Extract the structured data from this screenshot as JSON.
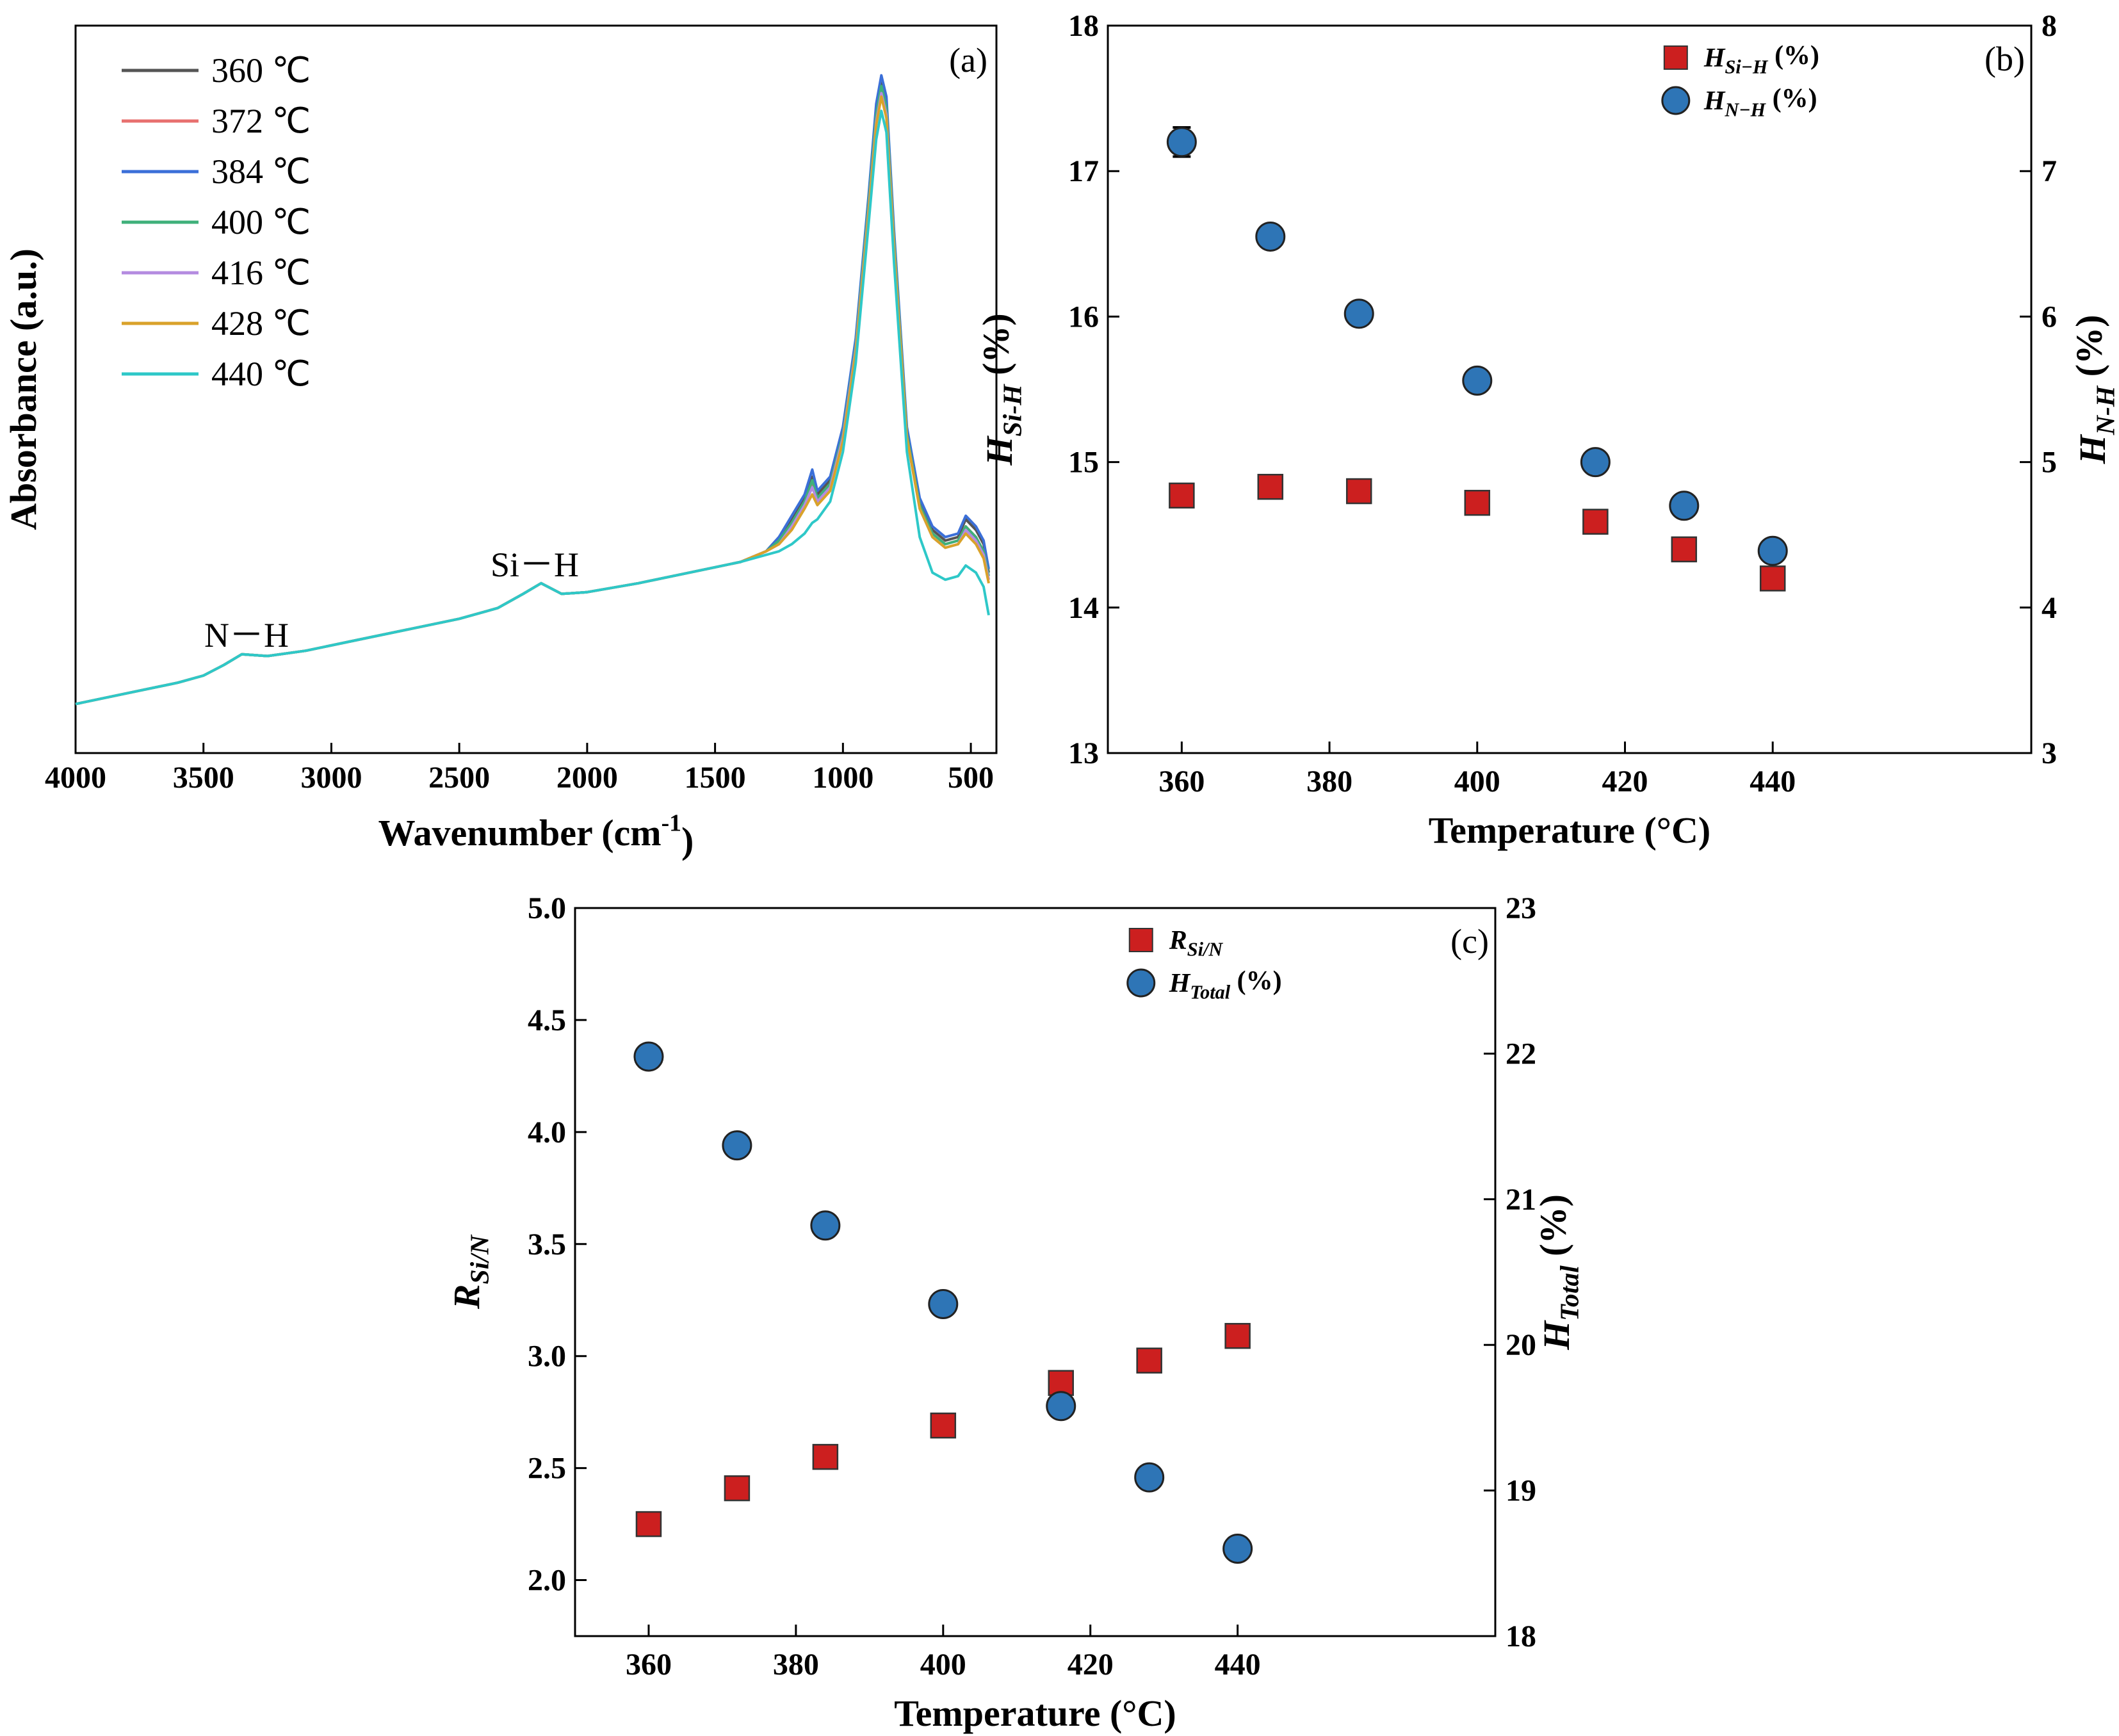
{
  "chart_data": [
    {
      "type": "line",
      "panel_label": "(a)",
      "xlabel": "Wavenumber (cm",
      "xlabel_sup": "-1",
      "xlabel_end": ")",
      "ylabel": "Absorbance (a.u.)",
      "xlim": [
        4000,
        400
      ],
      "x_ticks": [
        4000,
        3500,
        3000,
        2500,
        2000,
        1500,
        1000,
        500
      ],
      "y_ticks_shown": false,
      "annotations": [
        "N－H",
        "Si－H"
      ],
      "legend_position": "top-left",
      "x": [
        4000,
        3800,
        3600,
        3500,
        3420,
        3350,
        3250,
        3100,
        2900,
        2700,
        2500,
        2350,
        2250,
        2180,
        2100,
        2000,
        1800,
        1600,
        1400,
        1300,
        1250,
        1200,
        1150,
        1120,
        1100,
        1050,
        1000,
        950,
        900,
        870,
        850,
        830,
        800,
        750,
        700,
        650,
        600,
        550,
        520,
        480,
        450,
        430
      ],
      "series": [
        {
          "name": "360 ℃",
          "color": "#555555",
          "values": [
            0.03,
            0.06,
            0.09,
            0.11,
            0.14,
            0.17,
            0.165,
            0.18,
            0.21,
            0.24,
            0.27,
            0.3,
            0.34,
            0.37,
            0.34,
            0.345,
            0.37,
            0.4,
            0.43,
            0.46,
            0.5,
            0.55,
            0.61,
            0.67,
            0.62,
            0.66,
            0.8,
            1.05,
            1.45,
            1.7,
            1.78,
            1.72,
            1.35,
            0.8,
            0.6,
            0.52,
            0.49,
            0.5,
            0.55,
            0.52,
            0.48,
            0.4
          ]
        },
        {
          "name": "372 ℃",
          "color": "#e8706f",
          "values": [
            0.03,
            0.06,
            0.09,
            0.11,
            0.14,
            0.17,
            0.165,
            0.18,
            0.21,
            0.24,
            0.27,
            0.3,
            0.34,
            0.37,
            0.34,
            0.345,
            0.37,
            0.4,
            0.43,
            0.46,
            0.49,
            0.54,
            0.6,
            0.65,
            0.61,
            0.65,
            0.79,
            1.04,
            1.43,
            1.68,
            1.76,
            1.7,
            1.33,
            0.79,
            0.59,
            0.51,
            0.48,
            0.49,
            0.53,
            0.5,
            0.46,
            0.38
          ]
        },
        {
          "name": "384 ℃",
          "color": "#3b6fd8",
          "values": [
            0.03,
            0.06,
            0.09,
            0.11,
            0.14,
            0.17,
            0.165,
            0.18,
            0.21,
            0.24,
            0.27,
            0.3,
            0.34,
            0.37,
            0.34,
            0.345,
            0.37,
            0.4,
            0.43,
            0.46,
            0.5,
            0.56,
            0.62,
            0.69,
            0.63,
            0.67,
            0.81,
            1.06,
            1.46,
            1.72,
            1.8,
            1.74,
            1.36,
            0.81,
            0.61,
            0.53,
            0.5,
            0.51,
            0.56,
            0.53,
            0.49,
            0.41
          ]
        },
        {
          "name": "400 ℃",
          "color": "#3fb07a",
          "values": [
            0.03,
            0.06,
            0.09,
            0.11,
            0.14,
            0.17,
            0.165,
            0.18,
            0.21,
            0.24,
            0.27,
            0.3,
            0.34,
            0.37,
            0.34,
            0.345,
            0.37,
            0.4,
            0.43,
            0.46,
            0.49,
            0.54,
            0.6,
            0.66,
            0.61,
            0.65,
            0.79,
            1.04,
            1.44,
            1.69,
            1.77,
            1.71,
            1.34,
            0.79,
            0.59,
            0.51,
            0.48,
            0.49,
            0.53,
            0.5,
            0.46,
            0.39
          ]
        },
        {
          "name": "416 ℃",
          "color": "#b48be0",
          "values": [
            0.03,
            0.06,
            0.09,
            0.11,
            0.14,
            0.17,
            0.165,
            0.18,
            0.21,
            0.24,
            0.27,
            0.3,
            0.34,
            0.37,
            0.34,
            0.345,
            0.37,
            0.4,
            0.43,
            0.46,
            0.48,
            0.53,
            0.59,
            0.64,
            0.6,
            0.64,
            0.78,
            1.03,
            1.42,
            1.67,
            1.75,
            1.69,
            1.32,
            0.78,
            0.58,
            0.5,
            0.47,
            0.48,
            0.52,
            0.49,
            0.45,
            0.38
          ]
        },
        {
          "name": "428 ℃",
          "color": "#d9a22a",
          "values": [
            0.03,
            0.06,
            0.09,
            0.11,
            0.14,
            0.17,
            0.165,
            0.18,
            0.21,
            0.24,
            0.27,
            0.3,
            0.34,
            0.37,
            0.34,
            0.345,
            0.37,
            0.4,
            0.43,
            0.46,
            0.48,
            0.52,
            0.58,
            0.62,
            0.59,
            0.63,
            0.77,
            1.02,
            1.41,
            1.66,
            1.74,
            1.68,
            1.31,
            0.78,
            0.58,
            0.5,
            0.47,
            0.48,
            0.51,
            0.48,
            0.44,
            0.37
          ]
        },
        {
          "name": "440 ℃",
          "color": "#2ec8c8",
          "values": [
            0.03,
            0.06,
            0.09,
            0.11,
            0.14,
            0.17,
            0.165,
            0.18,
            0.21,
            0.24,
            0.27,
            0.3,
            0.34,
            0.37,
            0.34,
            0.345,
            0.37,
            0.4,
            0.43,
            0.45,
            0.46,
            0.48,
            0.51,
            0.54,
            0.55,
            0.6,
            0.74,
            0.99,
            1.38,
            1.62,
            1.7,
            1.64,
            1.27,
            0.74,
            0.5,
            0.4,
            0.38,
            0.39,
            0.42,
            0.4,
            0.36,
            0.28
          ]
        }
      ]
    },
    {
      "type": "scatter",
      "panel_label": "(b)",
      "xlabel": "Temperature (°C)",
      "ylabel_left": "H",
      "ylabel_left_sub": "Si-H",
      "ylabel_left_unit": " (%)",
      "ylabel_right": "H",
      "ylabel_right_sub": "N-H",
      "ylabel_right_unit": " (%)",
      "xlim": [
        350,
        475
      ],
      "ylim_left": [
        13,
        18
      ],
      "ylim_right": [
        3,
        8
      ],
      "x_ticks": [
        360,
        380,
        400,
        420,
        440
      ],
      "y_ticks_left": [
        13,
        14,
        15,
        16,
        17,
        18
      ],
      "y_ticks_right": [
        3,
        4,
        5,
        6,
        7,
        8
      ],
      "legend_position": "top-right",
      "x": [
        360,
        372,
        384,
        400,
        416,
        428,
        440
      ],
      "series": [
        {
          "name": "H",
          "sub": "Si−H",
          "unit": " (%)",
          "marker": "square",
          "color": "#cc1f1f",
          "axis": "left",
          "values": [
            14.77,
            14.83,
            14.8,
            14.72,
            14.59,
            14.4,
            14.2
          ]
        },
        {
          "name": "H",
          "sub": "N−H",
          "unit": " (%)",
          "marker": "circle",
          "color": "#2e75b6",
          "axis": "right",
          "values": [
            7.2,
            6.55,
            6.02,
            5.56,
            5.0,
            4.7,
            4.39
          ],
          "errors": [
            0.1,
            0,
            0,
            0,
            0,
            0,
            0
          ]
        }
      ]
    },
    {
      "type": "scatter",
      "panel_label": "(c)",
      "xlabel": "Temperature (°C)",
      "ylabel_left": "R",
      "ylabel_left_sub": "Si/N",
      "ylabel_left_unit": "",
      "ylabel_right": "H",
      "ylabel_right_sub": "Total",
      "ylabel_right_unit": " (%)",
      "xlim": [
        350,
        475
      ],
      "ylim_left": [
        1.75,
        5.0
      ],
      "ylim_right": [
        18,
        23
      ],
      "x_ticks": [
        360,
        380,
        400,
        420,
        440
      ],
      "y_ticks_left": [
        "2.0",
        "2.5",
        "3.0",
        "3.5",
        "4.0",
        "4.5",
        "5.0"
      ],
      "y_ticks_right": [
        18,
        19,
        20,
        21,
        22,
        23
      ],
      "legend_position": "top-right",
      "x": [
        360,
        372,
        384,
        400,
        416,
        428,
        440
      ],
      "series": [
        {
          "name": "R",
          "sub": "Si/N",
          "unit": "",
          "marker": "square",
          "color": "#cc1f1f",
          "axis": "left",
          "values": [
            2.25,
            2.41,
            2.55,
            2.69,
            2.88,
            2.98,
            3.09
          ]
        },
        {
          "name": "H",
          "sub": "Total",
          "unit": " (%)",
          "marker": "circle",
          "color": "#2e75b6",
          "axis": "right",
          "values": [
            21.98,
            21.37,
            20.82,
            20.28,
            19.58,
            19.09,
            18.6
          ]
        }
      ]
    }
  ]
}
